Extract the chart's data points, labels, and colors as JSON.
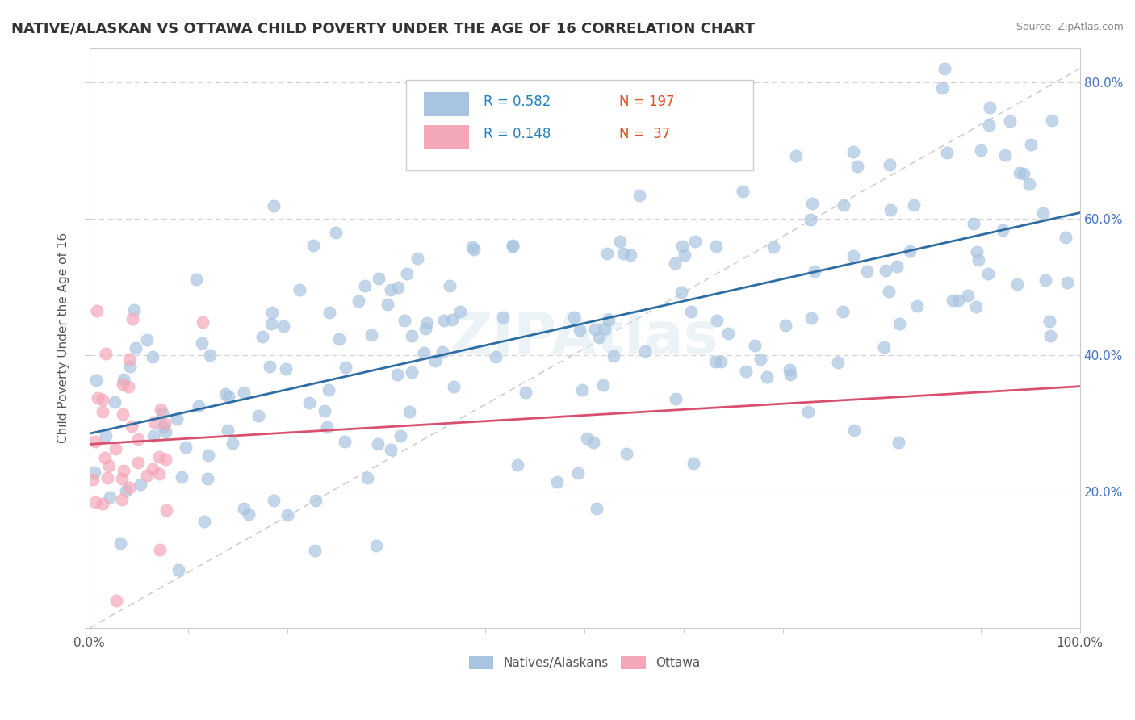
{
  "title": "NATIVE/ALASKAN VS OTTAWA CHILD POVERTY UNDER THE AGE OF 16 CORRELATION CHART",
  "source": "Source: ZipAtlas.com",
  "ylabel": "Child Poverty Under the Age of 16",
  "xlim": [
    0.0,
    1.0
  ],
  "ylim": [
    0.0,
    0.85
  ],
  "blue_R": 0.582,
  "blue_N": 197,
  "pink_R": 0.148,
  "pink_N": 37,
  "blue_color": "#a8c4e0",
  "pink_color": "#f4a7b9",
  "blue_line_color": "#2e6da4",
  "pink_line_color": "#d94f6e",
  "legend_R_color": "#2080c0",
  "legend_N_color": "#e05020",
  "watermark": "ZIPAtlas"
}
